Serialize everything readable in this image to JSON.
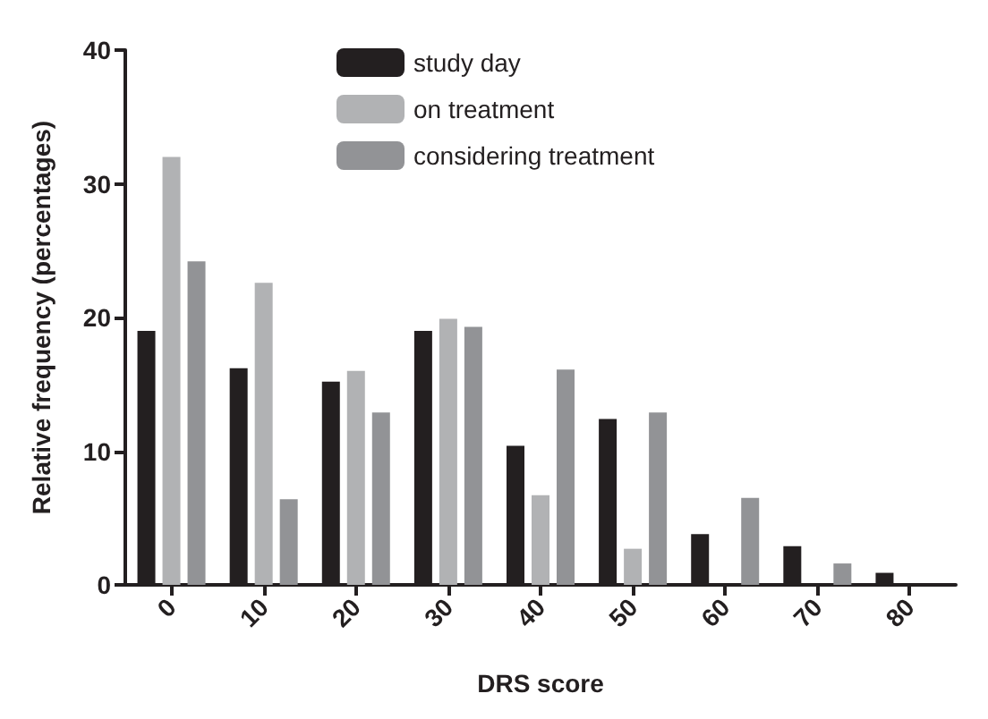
{
  "chart_data": {
    "type": "bar",
    "xlabel": "DRS score",
    "ylabel": "Relative frequency (percentages)",
    "categories": [
      "0",
      "10",
      "20",
      "30",
      "40",
      "50",
      "60",
      "70",
      "80"
    ],
    "series": [
      {
        "name": "study day",
        "color": "#231f20",
        "values": [
          19.0,
          16.2,
          15.2,
          19.0,
          10.4,
          12.4,
          3.8,
          2.9,
          0.9
        ]
      },
      {
        "name": "on treatment",
        "color": "#b1b2b4",
        "values": [
          32.0,
          22.6,
          16.0,
          19.9,
          6.7,
          2.7,
          0,
          0,
          0
        ]
      },
      {
        "name": "considering treatment",
        "color": "#929396",
        "values": [
          24.2,
          6.4,
          12.9,
          19.3,
          16.1,
          12.9,
          6.5,
          1.6,
          0
        ]
      }
    ],
    "ylim": [
      0,
      40
    ],
    "yticks": [
      0,
      10,
      20,
      30,
      40
    ],
    "grid": false,
    "legend": "top"
  }
}
